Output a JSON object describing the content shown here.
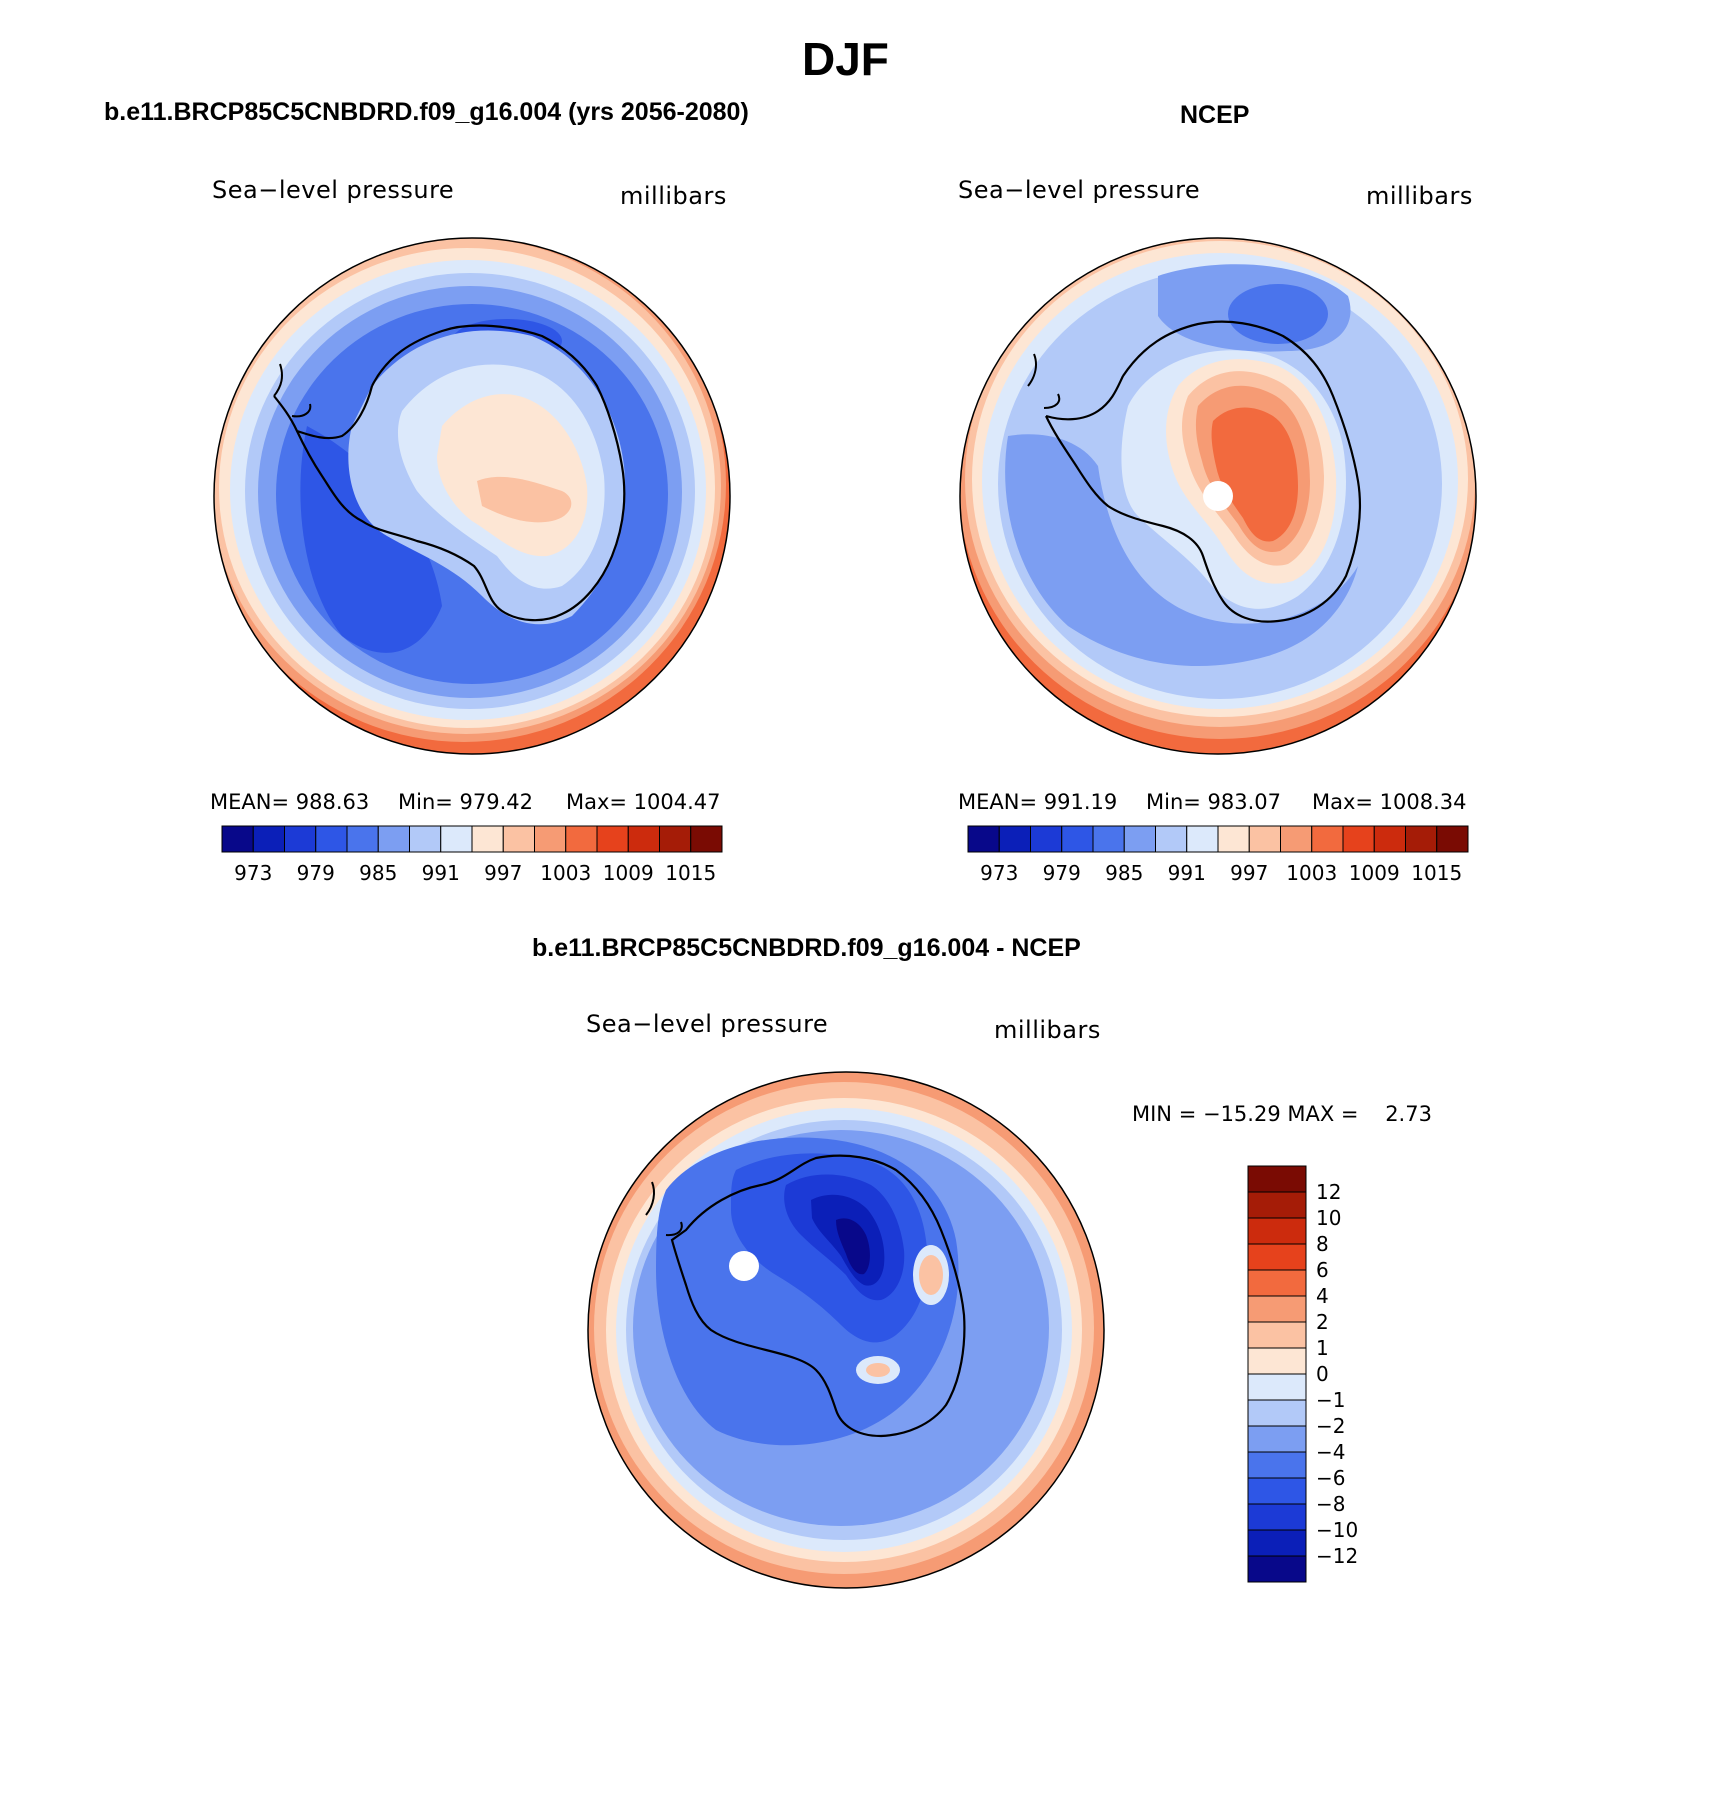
{
  "figure": {
    "title": "DJF",
    "colors": {
      "abs_palette": [
        "#08088a",
        "#0b1fb8",
        "#1c3ad6",
        "#2e56e6",
        "#4a74ec",
        "#7c9ef2",
        "#b2c9f8",
        "#dce9fb",
        "#fde6d4",
        "#fbc2a3",
        "#f69b74",
        "#f26a3e",
        "#e6421c",
        "#cc2b0d",
        "#a51c07",
        "#7a0b03"
      ],
      "diff_palette": [
        "#08088a",
        "#0b1fb8",
        "#1c3ad6",
        "#2e56e6",
        "#4a74ec",
        "#7c9ef2",
        "#b2c9f8",
        "#dce9fb",
        "#fde6d4",
        "#fbc2a3",
        "#f69b74",
        "#f26a3e",
        "#e6421c",
        "#cc2b0d",
        "#a51c07",
        "#7a0b03"
      ]
    }
  },
  "panels": [
    {
      "title": "b.e11.BRCP85C5CNBDRD.f09_g16.004 (yrs 2056-2080)",
      "variable": "Sea−level pressure",
      "units": "millibars",
      "stats": {
        "mean": "MEAN= 988.63",
        "min": "Min= 979.42",
        "max": "Max= 1004.47"
      },
      "colorbar_ticks": [
        "973",
        "979",
        "985",
        "991",
        "997",
        "1003",
        "1009",
        "1015"
      ]
    },
    {
      "title": "NCEP",
      "variable": "Sea−level pressure",
      "units": "millibars",
      "stats": {
        "mean": "MEAN= 991.19",
        "min": "Min= 983.07",
        "max": "Max= 1008.34"
      },
      "colorbar_ticks": [
        "973",
        "979",
        "985",
        "991",
        "997",
        "1003",
        "1009",
        "1015"
      ]
    },
    {
      "title": "b.e11.BRCP85C5CNBDRD.f09_g16.004 - NCEP",
      "variable": "Sea−level pressure",
      "units": "millibars",
      "minmax": "MIN = −15.29 MAX =    2.73",
      "colorbar_ticks": [
        "12",
        "10",
        "8",
        "6",
        "4",
        "2",
        "1",
        "0",
        "−1",
        "−2",
        "−4",
        "−6",
        "−8",
        "−10",
        "−12"
      ]
    }
  ]
}
